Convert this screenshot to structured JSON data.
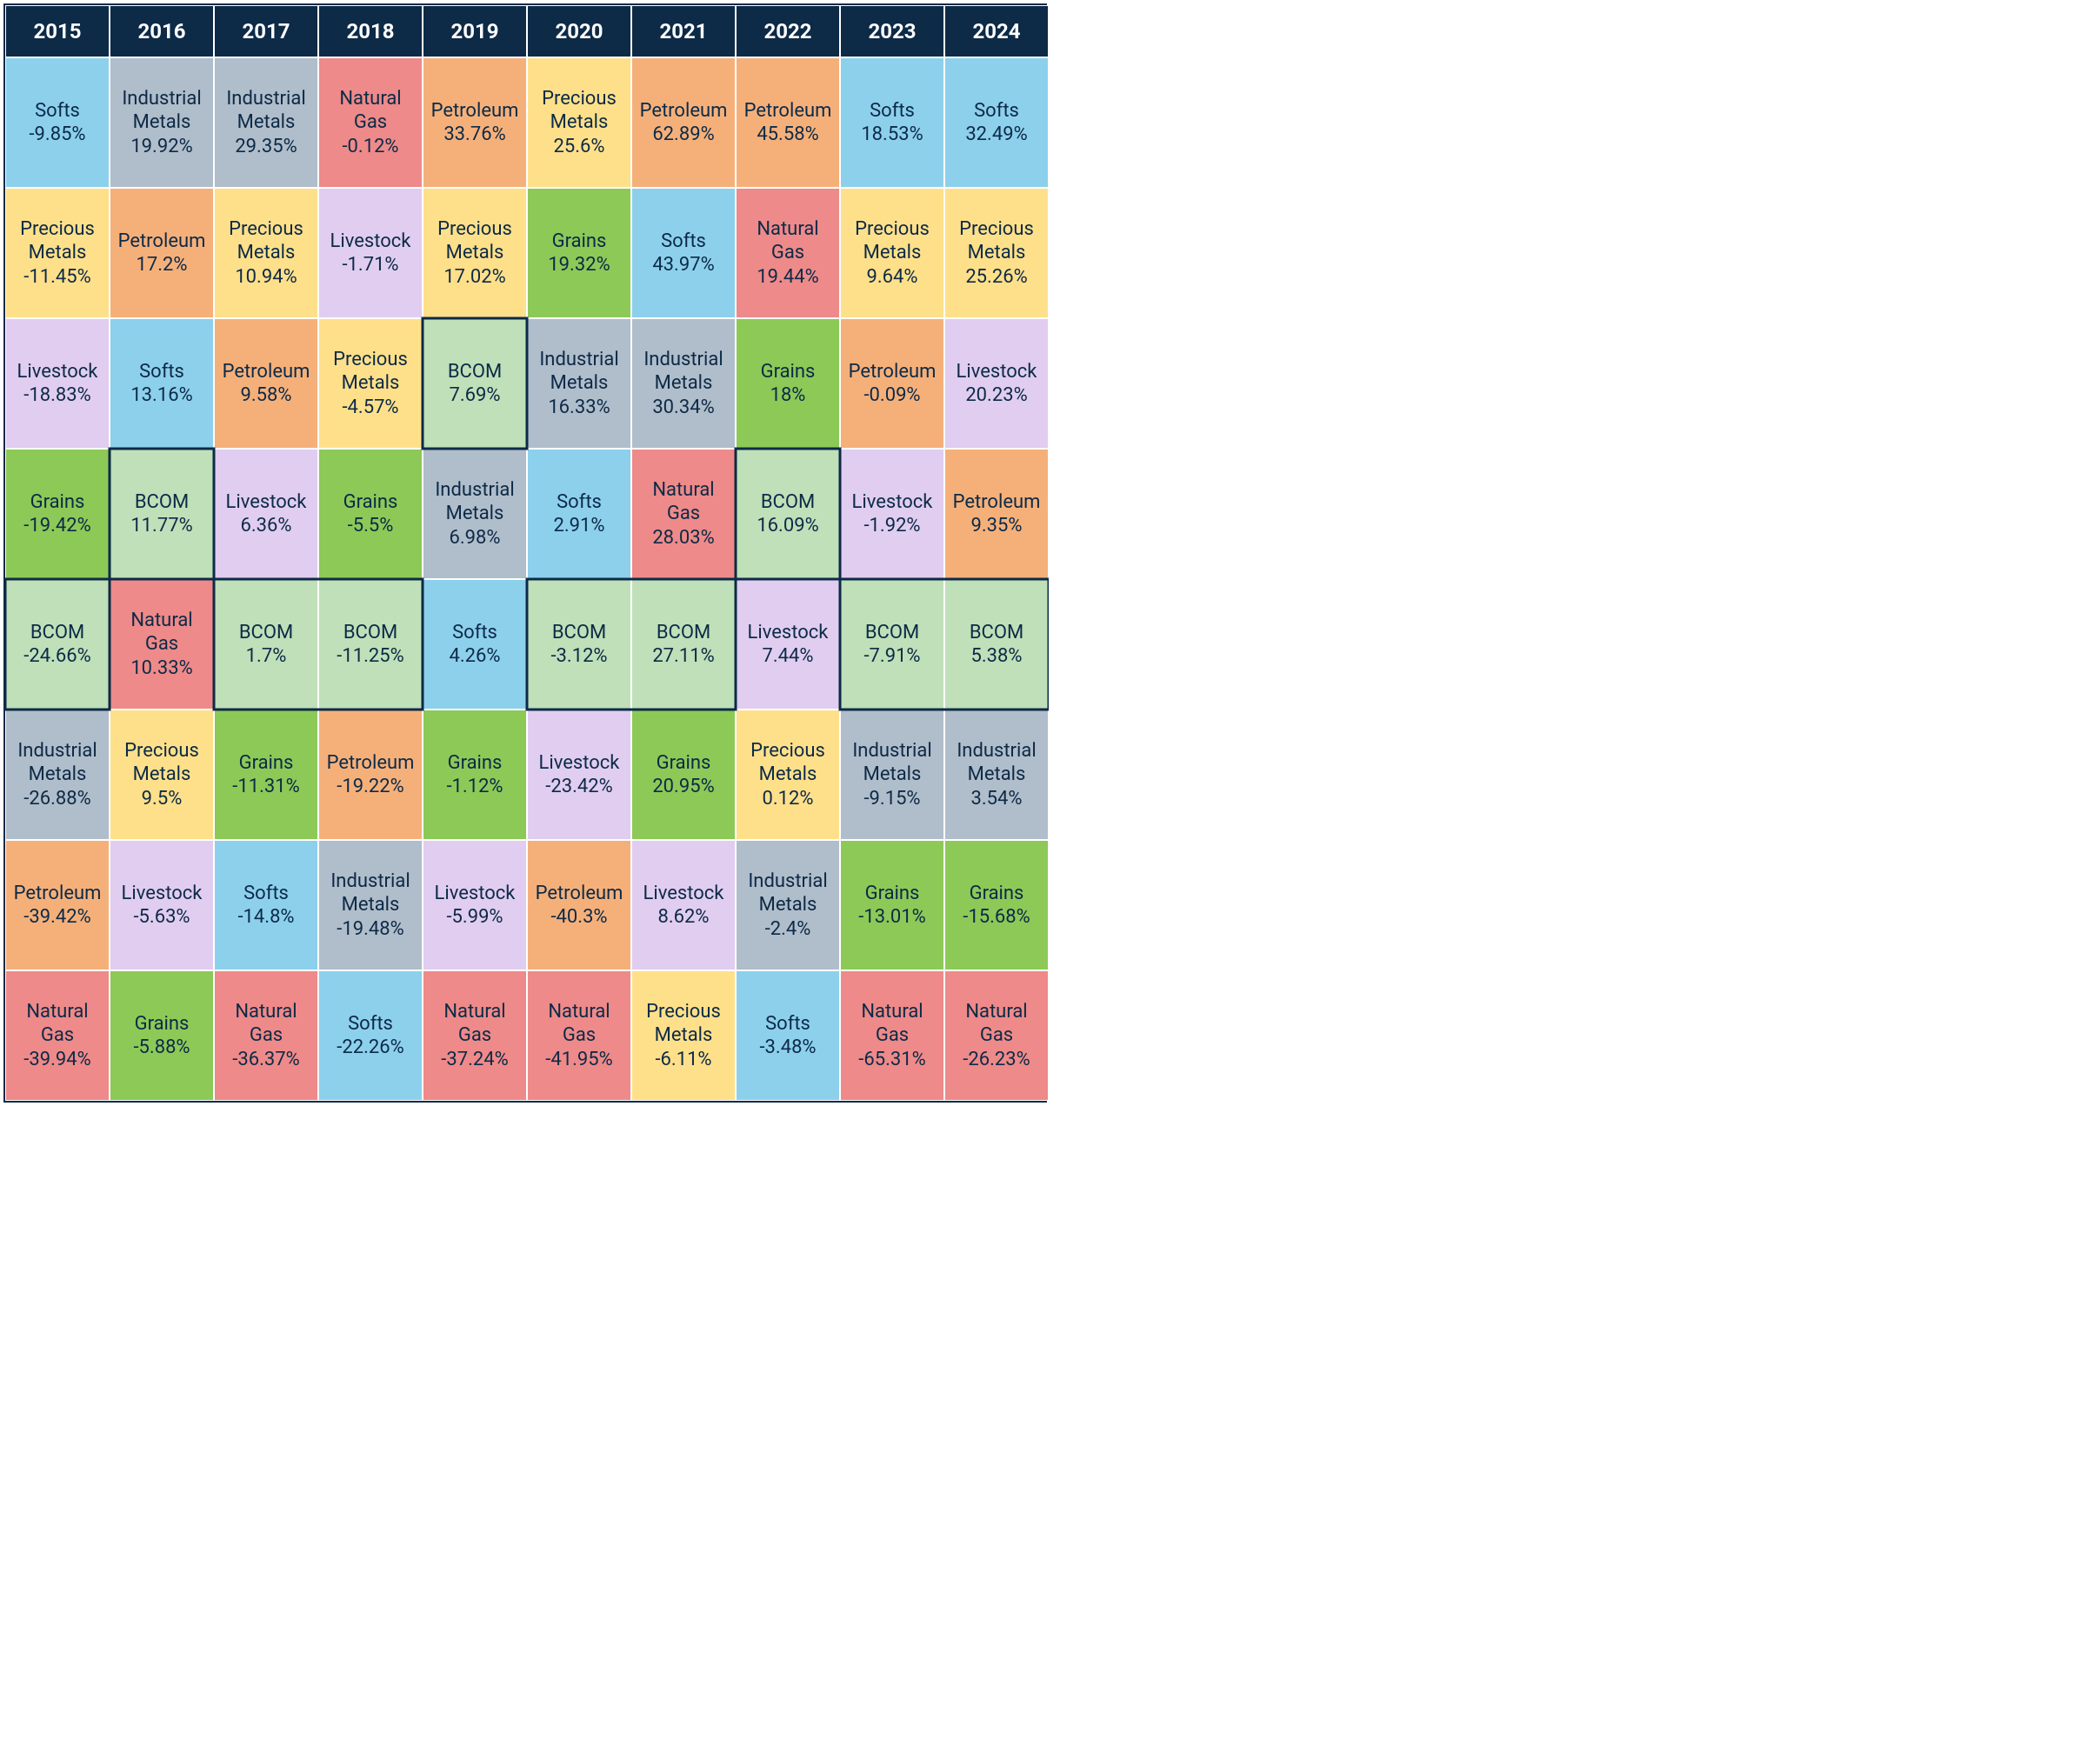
{
  "layout": {
    "columns": 10,
    "bodyRows": 8,
    "headerHeight": 60,
    "cellHeight": 150,
    "cellWidth": 120,
    "headerBg": "#0d2a47",
    "headerColor": "#ffffff",
    "headerFontSize": 24,
    "labelFontSize": 22,
    "valueFontSize": 22,
    "textColor": "#0d2a47",
    "cellBorderColor": "#ffffff",
    "gridBorderColor": "#0d2a47"
  },
  "categoryColors": {
    "Softs": "#8cd0ec",
    "Precious Metals": "#ffe08a",
    "Livestock": "#e0cdf0",
    "Grains": "#8cc957",
    "BCOM": "#bfe0b8",
    "Industrial Metals": "#b0bdca",
    "Petroleum": "#f5b07a",
    "Natural Gas": "#ee8a89"
  },
  "years": [
    "2015",
    "2016",
    "2017",
    "2018",
    "2019",
    "2020",
    "2021",
    "2022",
    "2023",
    "2024"
  ],
  "grid": [
    [
      {
        "category": "Softs",
        "value": "-9.85%"
      },
      {
        "category": "Industrial Metals",
        "value": "19.92%"
      },
      {
        "category": "Industrial Metals",
        "value": "29.35%"
      },
      {
        "category": "Natural Gas",
        "value": "-0.12%"
      },
      {
        "category": "Petroleum",
        "value": "33.76%"
      },
      {
        "category": "Precious Metals",
        "value": "25.6%"
      },
      {
        "category": "Petroleum",
        "value": "62.89%"
      },
      {
        "category": "Petroleum",
        "value": "45.58%"
      },
      {
        "category": "Softs",
        "value": "18.53%"
      },
      {
        "category": "Softs",
        "value": "32.49%"
      }
    ],
    [
      {
        "category": "Precious Metals",
        "value": "-11.45%"
      },
      {
        "category": "Petroleum",
        "value": "17.2%"
      },
      {
        "category": "Precious Metals",
        "value": "10.94%"
      },
      {
        "category": "Livestock",
        "value": "-1.71%"
      },
      {
        "category": "Precious Metals",
        "value": "17.02%"
      },
      {
        "category": "Grains",
        "value": "19.32%"
      },
      {
        "category": "Softs",
        "value": "43.97%"
      },
      {
        "category": "Natural Gas",
        "value": "19.44%"
      },
      {
        "category": "Precious Metals",
        "value": "9.64%"
      },
      {
        "category": "Precious Metals",
        "value": "25.26%"
      }
    ],
    [
      {
        "category": "Livestock",
        "value": "-18.83%"
      },
      {
        "category": "Softs",
        "value": "13.16%"
      },
      {
        "category": "Petroleum",
        "value": "9.58%"
      },
      {
        "category": "Precious Metals",
        "value": "-4.57%"
      },
      {
        "category": "BCOM",
        "value": "7.69%"
      },
      {
        "category": "Industrial Metals",
        "value": "16.33%"
      },
      {
        "category": "Industrial Metals",
        "value": "30.34%"
      },
      {
        "category": "Grains",
        "value": "18%"
      },
      {
        "category": "Petroleum",
        "value": "-0.09%"
      },
      {
        "category": "Livestock",
        "value": "20.23%"
      }
    ],
    [
      {
        "category": "Grains",
        "value": "-19.42%"
      },
      {
        "category": "BCOM",
        "value": "11.77%"
      },
      {
        "category": "Livestock",
        "value": "6.36%"
      },
      {
        "category": "Grains",
        "value": "-5.5%"
      },
      {
        "category": "Industrial Metals",
        "value": "6.98%"
      },
      {
        "category": "Softs",
        "value": "2.91%"
      },
      {
        "category": "Natural Gas",
        "value": "28.03%"
      },
      {
        "category": "BCOM",
        "value": "16.09%"
      },
      {
        "category": "Livestock",
        "value": "-1.92%"
      },
      {
        "category": "Petroleum",
        "value": "9.35%"
      }
    ],
    [
      {
        "category": "BCOM",
        "value": "-24.66%"
      },
      {
        "category": "Natural Gas",
        "value": "10.33%"
      },
      {
        "category": "BCOM",
        "value": "1.7%"
      },
      {
        "category": "BCOM",
        "value": "-11.25%"
      },
      {
        "category": "Softs",
        "value": "4.26%"
      },
      {
        "category": "BCOM",
        "value": "-3.12%"
      },
      {
        "category": "BCOM",
        "value": "27.11%"
      },
      {
        "category": "Livestock",
        "value": "7.44%"
      },
      {
        "category": "BCOM",
        "value": "-7.91%"
      },
      {
        "category": "BCOM",
        "value": "5.38%"
      }
    ],
    [
      {
        "category": "Industrial Metals",
        "value": "-26.88%"
      },
      {
        "category": "Precious Metals",
        "value": "9.5%"
      },
      {
        "category": "Grains",
        "value": "-11.31%"
      },
      {
        "category": "Petroleum",
        "value": "-19.22%"
      },
      {
        "category": "Grains",
        "value": "-1.12%"
      },
      {
        "category": "Livestock",
        "value": "-23.42%"
      },
      {
        "category": "Grains",
        "value": "20.95%"
      },
      {
        "category": "Precious Metals",
        "value": "0.12%"
      },
      {
        "category": "Industrial Metals",
        "value": "-9.15%"
      },
      {
        "category": "Industrial Metals",
        "value": "3.54%"
      }
    ],
    [
      {
        "category": "Petroleum",
        "value": "-39.42%"
      },
      {
        "category": "Livestock",
        "value": "-5.63%"
      },
      {
        "category": "Softs",
        "value": "-14.8%"
      },
      {
        "category": "Industrial Metals",
        "value": "-19.48%"
      },
      {
        "category": "Livestock",
        "value": "-5.99%"
      },
      {
        "category": "Petroleum",
        "value": "-40.3%"
      },
      {
        "category": "Livestock",
        "value": "8.62%"
      },
      {
        "category": "Industrial Metals",
        "value": "-2.4%"
      },
      {
        "category": "Grains",
        "value": "-13.01%"
      },
      {
        "category": "Grains",
        "value": "-15.68%"
      }
    ],
    [
      {
        "category": "Natural Gas",
        "value": "-39.94%"
      },
      {
        "category": "Grains",
        "value": "-5.88%"
      },
      {
        "category": "Natural Gas",
        "value": "-36.37%"
      },
      {
        "category": "Softs",
        "value": "-22.26%"
      },
      {
        "category": "Natural Gas",
        "value": "-37.24%"
      },
      {
        "category": "Natural Gas",
        "value": "-41.95%"
      },
      {
        "category": "Precious Metals",
        "value": "-6.11%"
      },
      {
        "category": "Softs",
        "value": "-3.48%"
      },
      {
        "category": "Natural Gas",
        "value": "-65.31%"
      },
      {
        "category": "Natural Gas",
        "value": "-26.23%"
      }
    ]
  ],
  "bcomOutline": {
    "color": "#0d2a47",
    "width": 3
  }
}
